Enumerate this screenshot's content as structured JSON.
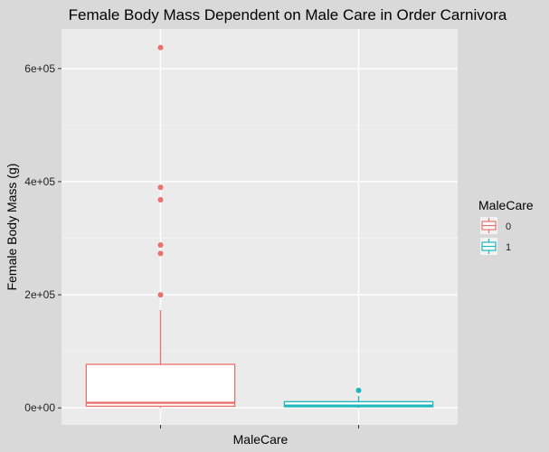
{
  "chart_data": {
    "type": "boxplot",
    "title": "Female Body Mass Dependent on Male Care in Order Carnivora",
    "xlabel": "MaleCare",
    "ylabel": "Female Body Mass (g)",
    "ylim": [
      -30000,
      670000
    ],
    "y_ticks": [
      {
        "value": 0,
        "label": "0e+00"
      },
      {
        "value": 200000,
        "label": "2e+05"
      },
      {
        "value": 400000,
        "label": "4e+05"
      },
      {
        "value": 600000,
        "label": "6e+05"
      }
    ],
    "grid": true,
    "legend": {
      "title": "MaleCare",
      "position": "right"
    },
    "series": [
      {
        "name": "0",
        "color": "#e8716c",
        "stats": {
          "min": 0,
          "q1": 3000,
          "median": 9000,
          "q3": 77000,
          "whisker_high": 173000
        },
        "outliers": [
          200000,
          273000,
          288000,
          368000,
          390000,
          637000
        ]
      },
      {
        "name": "1",
        "color": "#1fb7bd",
        "stats": {
          "min": 0,
          "q1": 2000,
          "median": 4000,
          "q3": 11000,
          "whisker_high": 21000
        },
        "outliers": [
          31000
        ]
      }
    ]
  }
}
